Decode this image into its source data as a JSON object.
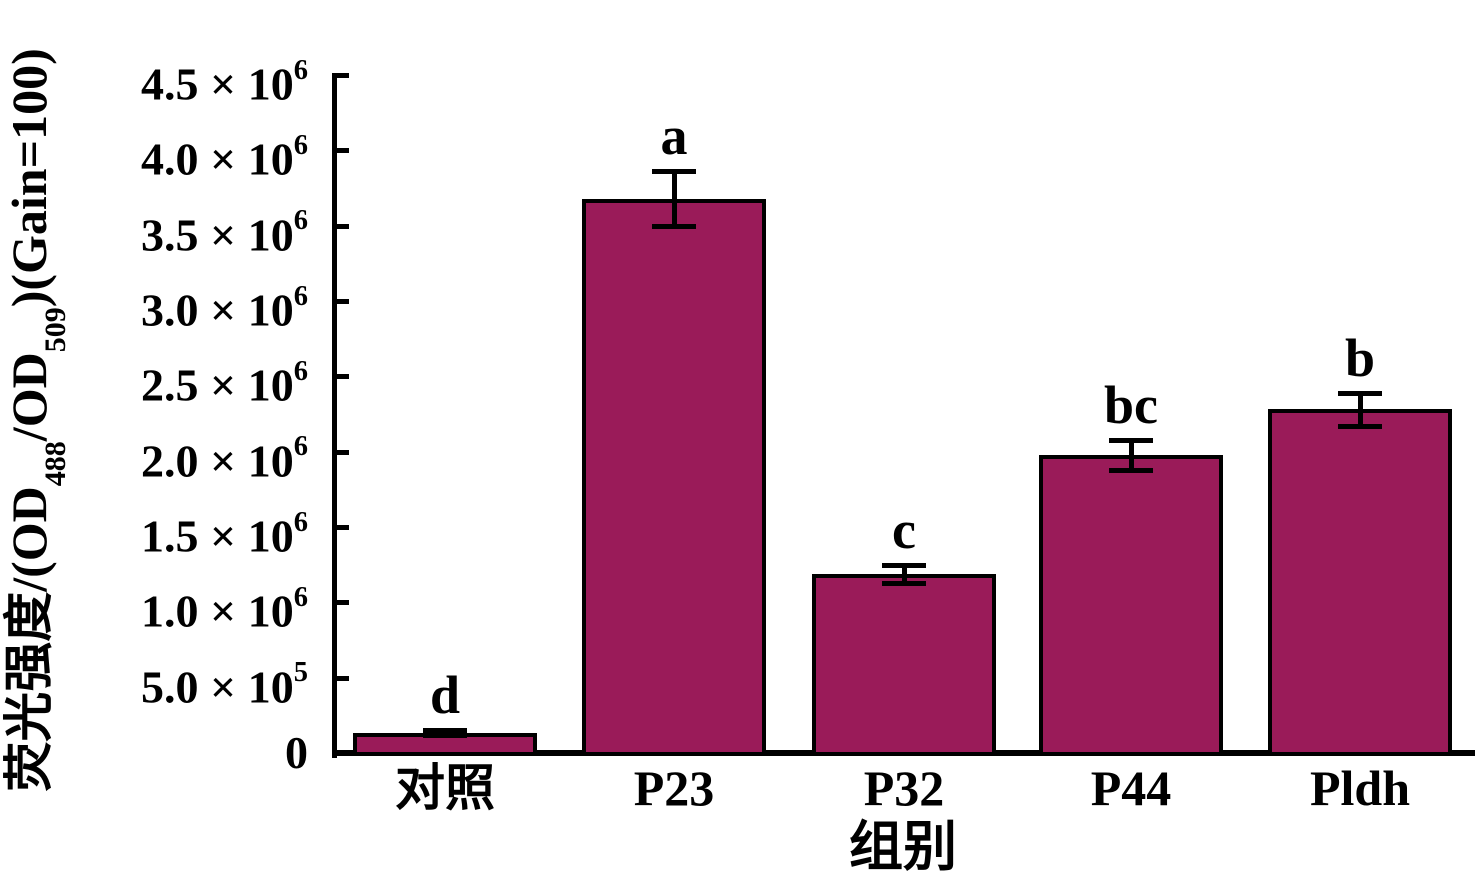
{
  "chart_data": {
    "type": "bar",
    "xlabel": "组别",
    "ylabel": "荧光强度/(OD488/OD509)(Gain=100)",
    "ylabel_parts": [
      {
        "text": "荧光强度/(OD"
      },
      {
        "text": "488",
        "sub": true
      },
      {
        "text": "/OD"
      },
      {
        "text": "509",
        "sub": true
      },
      {
        "text": ")(Gain=100)"
      }
    ],
    "categories": [
      "对照",
      "P23",
      "P32",
      "P44",
      "Pldh"
    ],
    "values": [
      135000,
      3680000,
      1190000,
      1980000,
      2280000
    ],
    "error_bars": [
      18000,
      180000,
      60000,
      100000,
      110000
    ],
    "significance_letters": [
      "d",
      "a",
      "c",
      "bc",
      "b"
    ],
    "ylim": [
      0,
      4500000
    ],
    "grid": false,
    "legend": null,
    "bar_color": "#9A1B59",
    "bar_border_color": "#000000",
    "axis_color": "#000000",
    "y_ticks": [
      {
        "value": 0,
        "base": "0",
        "exp": ""
      },
      {
        "value": 500000,
        "base": "5.0 × 10",
        "exp": "5"
      },
      {
        "value": 1000000,
        "base": "1.0 × 10",
        "exp": "6"
      },
      {
        "value": 1500000,
        "base": "1.5 × 10",
        "exp": "6"
      },
      {
        "value": 2000000,
        "base": "2.0 × 10",
        "exp": "6"
      },
      {
        "value": 2500000,
        "base": "2.5 × 10",
        "exp": "6"
      },
      {
        "value": 3000000,
        "base": "3.0 × 10",
        "exp": "6"
      },
      {
        "value": 3500000,
        "base": "3.5 × 10",
        "exp": "6"
      },
      {
        "value": 4000000,
        "base": "4.0 × 10",
        "exp": "6"
      },
      {
        "value": 4500000,
        "base": "4.5 × 10",
        "exp": "6"
      }
    ]
  }
}
